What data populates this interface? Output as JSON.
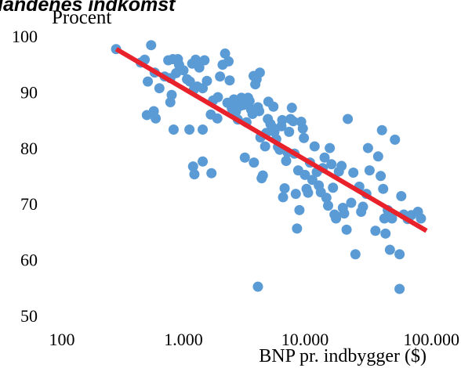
{
  "chart_data": {
    "type": "scatter",
    "title": "landenes indkomst",
    "ylabel": "Procent",
    "xlabel": "BNP pr. indbygger ($)",
    "x_scale": "log",
    "xlim": [
      100,
      100000
    ],
    "ylim": [
      50,
      100
    ],
    "x_ticks": [
      100,
      1000,
      10000,
      100000
    ],
    "x_tick_labels": [
      "100",
      "1.000",
      "10.000",
      "100.000"
    ],
    "y_ticks": [
      50,
      60,
      70,
      80,
      90,
      100
    ],
    "y_tick_labels": [
      "50",
      "60",
      "70",
      "80",
      "90",
      "100"
    ],
    "grid": false,
    "marker_color": "#5b9bd5",
    "trendline_color": "#e8212a",
    "trendline": {
      "x": [
        280,
        100000
      ],
      "y": [
        97.8,
        65.3
      ]
    },
    "points": [
      [
        279,
        97.8
      ],
      [
        445,
        95.4
      ],
      [
        480,
        95.9
      ],
      [
        542,
        98.5
      ],
      [
        580,
        93.6
      ],
      [
        500,
        86.0
      ],
      [
        509,
        92.0
      ],
      [
        570,
        86.7
      ],
      [
        591,
        85.4
      ],
      [
        634,
        90.8
      ],
      [
        700,
        92.9
      ],
      [
        780,
        92.6
      ],
      [
        750,
        95.8
      ],
      [
        820,
        96.0
      ],
      [
        780,
        88.3
      ],
      [
        800,
        89.6
      ],
      [
        830,
        83.4
      ],
      [
        870,
        93.5
      ],
      [
        920,
        95.0
      ],
      [
        900,
        96.0
      ],
      [
        1000,
        94.0
      ],
      [
        1070,
        92.4
      ],
      [
        1130,
        92.0
      ],
      [
        1180,
        95.2
      ],
      [
        1220,
        90.6
      ],
      [
        1260,
        95.9
      ],
      [
        1300,
        91.1
      ],
      [
        1350,
        94.5
      ],
      [
        1490,
        95.8
      ],
      [
        1440,
        90.8
      ],
      [
        1560,
        92.1
      ],
      [
        1440,
        83.4
      ],
      [
        1120,
        83.4
      ],
      [
        1200,
        76.8
      ],
      [
        1230,
        75.4
      ],
      [
        1440,
        77.7
      ],
      [
        1700,
        75.6
      ],
      [
        1680,
        86.1
      ],
      [
        1750,
        88.6
      ],
      [
        1900,
        85.4
      ],
      [
        1920,
        89.2
      ],
      [
        2000,
        92.9
      ],
      [
        2100,
        95.0
      ],
      [
        2200,
        97.0
      ],
      [
        2350,
        95.6
      ],
      [
        2400,
        92.2
      ],
      [
        2300,
        88.2
      ],
      [
        2500,
        87.2
      ],
      [
        2600,
        88.8
      ],
      [
        2700,
        86.6
      ],
      [
        2800,
        85.2
      ],
      [
        2900,
        87.6
      ],
      [
        3000,
        89.1
      ],
      [
        3100,
        87.8
      ],
      [
        3200,
        78.4
      ],
      [
        3300,
        84.7
      ],
      [
        3400,
        89.1
      ],
      [
        3500,
        88.5
      ],
      [
        3600,
        87.0
      ],
      [
        3700,
        86.2
      ],
      [
        3780,
        93.0
      ],
      [
        3800,
        77.5
      ],
      [
        3900,
        91.5
      ],
      [
        4000,
        92.4
      ],
      [
        4100,
        87.4
      ],
      [
        4200,
        86.7
      ],
      [
        4250,
        93.6
      ],
      [
        4300,
        82.0
      ],
      [
        4400,
        74.7
      ],
      [
        4500,
        75.2
      ],
      [
        4700,
        80.4
      ],
      [
        4800,
        82.8
      ],
      [
        4950,
        85.3
      ],
      [
        5000,
        88.4
      ],
      [
        5200,
        84.4
      ],
      [
        5400,
        83.8
      ],
      [
        5500,
        87.5
      ],
      [
        5600,
        83.0
      ],
      [
        5800,
        81.7
      ],
      [
        6000,
        80.3
      ],
      [
        6200,
        79.8
      ],
      [
        6400,
        84.0
      ],
      [
        6500,
        85.1
      ],
      [
        6600,
        71.3
      ],
      [
        6800,
        72.9
      ],
      [
        7000,
        77.8
      ],
      [
        7200,
        79.3
      ],
      [
        7400,
        83.0
      ],
      [
        7600,
        85.3
      ],
      [
        7800,
        87.3
      ],
      [
        8000,
        84.9
      ],
      [
        8200,
        79.1
      ],
      [
        8400,
        71.9
      ],
      [
        8600,
        65.7
      ],
      [
        8800,
        76.1
      ],
      [
        9000,
        69.0
      ],
      [
        9300,
        84.8
      ],
      [
        9600,
        83.6
      ],
      [
        9800,
        81.9
      ],
      [
        10000,
        75.3
      ],
      [
        10300,
        72.8
      ],
      [
        10600,
        72.1
      ],
      [
        11000,
        77.5
      ],
      [
        11500,
        74.4
      ],
      [
        12000,
        80.4
      ],
      [
        12500,
        75.8
      ],
      [
        13000,
        73.4
      ],
      [
        13500,
        72.2
      ],
      [
        14000,
        76.5
      ],
      [
        14500,
        78.4
      ],
      [
        15000,
        71.2
      ],
      [
        15500,
        69.8
      ],
      [
        16000,
        80.1
      ],
      [
        16500,
        77.2
      ],
      [
        17000,
        73.0
      ],
      [
        17500,
        68.2
      ],
      [
        18000,
        67.5
      ],
      [
        19000,
        75.9
      ],
      [
        20000,
        76.9
      ],
      [
        20500,
        69.4
      ],
      [
        21000,
        68.4
      ],
      [
        22000,
        65.5
      ],
      [
        22500,
        85.3
      ],
      [
        24000,
        70.3
      ],
      [
        25000,
        75.7
      ],
      [
        26000,
        61.1
      ],
      [
        28000,
        73.2
      ],
      [
        29000,
        68.7
      ],
      [
        30000,
        69.6
      ],
      [
        32000,
        71.9
      ],
      [
        33000,
        80.1
      ],
      [
        34000,
        76.1
      ],
      [
        38000,
        65.3
      ],
      [
        40000,
        78.6
      ],
      [
        42000,
        75.1
      ],
      [
        43000,
        83.3
      ],
      [
        44000,
        72.8
      ],
      [
        45000,
        67.5
      ],
      [
        46000,
        64.8
      ],
      [
        48000,
        69.0
      ],
      [
        50000,
        61.9
      ],
      [
        52000,
        67.5
      ],
      [
        55000,
        81.6
      ],
      [
        60000,
        61.1
      ],
      [
        62000,
        71.5
      ],
      [
        60000,
        54.9
      ],
      [
        65000,
        68.2
      ],
      [
        70000,
        67.4
      ],
      [
        75000,
        68.1
      ],
      [
        85000,
        68.7
      ],
      [
        90000,
        67.5
      ],
      [
        4100,
        55.3
      ]
    ]
  }
}
